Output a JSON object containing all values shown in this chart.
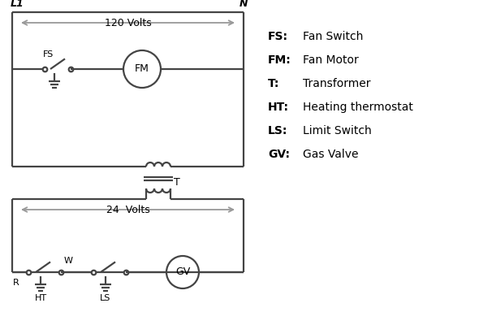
{
  "bg_color": "#ffffff",
  "line_color": "#444444",
  "arrow_color": "#999999",
  "text_color": "#000000",
  "legend_items": [
    [
      "FS:",
      "Fan Switch"
    ],
    [
      "FM:",
      "Fan Motor"
    ],
    [
      "T:",
      "Transformer"
    ],
    [
      "HT:",
      "Heating thermostat"
    ],
    [
      "LS:",
      "Limit Switch"
    ],
    [
      "GV:",
      "Gas Valve"
    ]
  ],
  "label_L1": "L1",
  "label_N": "N",
  "label_120V": "120 Volts",
  "label_24V": "24  Volts",
  "label_T": "T",
  "label_R": "R",
  "label_W": "W",
  "label_HT": "HT",
  "label_LS": "LS",
  "label_FS": "FS",
  "label_FM": "FM",
  "label_GV": "GV"
}
